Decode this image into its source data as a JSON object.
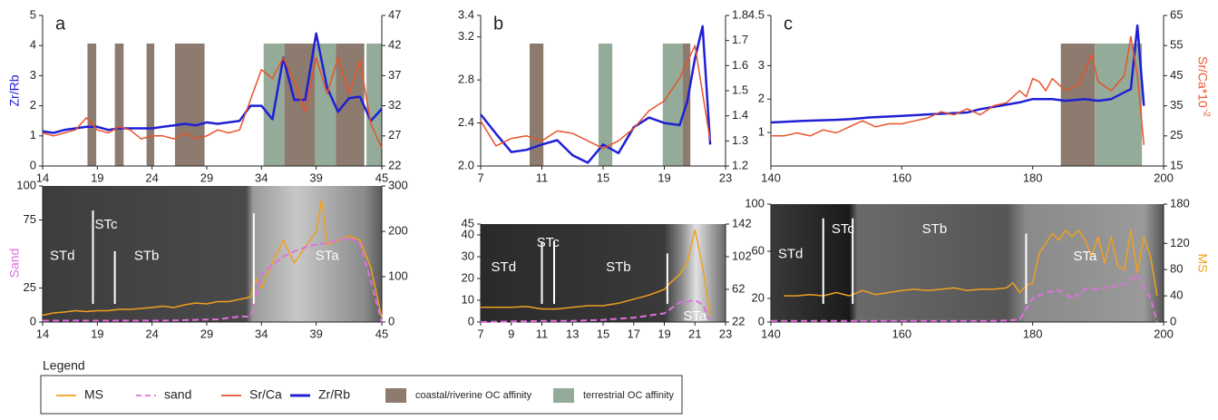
{
  "chart_data": [
    {
      "type": "line",
      "letter": "a",
      "ylabel": "Zr/Rb",
      "xlim": [
        14,
        45
      ],
      "xticks": [
        14,
        19,
        24,
        29,
        34,
        39,
        45
      ],
      "ylim": [
        0,
        5
      ],
      "yticks": [
        0,
        1,
        2,
        3,
        4,
        5
      ],
      "y2lim": [
        22,
        47
      ],
      "y2ticks": [
        22,
        27,
        32,
        37,
        42,
        47
      ],
      "spans": [
        {
          "x": [
            18.1,
            18.9
          ],
          "color": "#8c7b6e"
        },
        {
          "x": [
            20.6,
            21.4
          ],
          "color": "#8c7b6e"
        },
        {
          "x": [
            23.5,
            24.2
          ],
          "color": "#8c7b6e"
        },
        {
          "x": [
            26.1,
            28.8
          ],
          "color": "#8c7b6e"
        },
        {
          "x": [
            34.2,
            36.1
          ],
          "color": "#93ab98"
        },
        {
          "x": [
            36.1,
            38.9
          ],
          "color": "#8c7b6e"
        },
        {
          "x": [
            38.9,
            40.8
          ],
          "color": "#93ab98"
        },
        {
          "x": [
            40.8,
            43.4
          ],
          "color": "#8c7b6e"
        },
        {
          "x": [
            43.6,
            45
          ],
          "color": "#93ab98"
        }
      ],
      "series": [
        {
          "color": "#1f1fd6",
          "width": 2.5,
          "axis": "y",
          "x": [
            14,
            15,
            16,
            17,
            18,
            19,
            20,
            21,
            22,
            23,
            24,
            25,
            26,
            27,
            28,
            29,
            30,
            31,
            32,
            33,
            34,
            35,
            36,
            37,
            38,
            39,
            40,
            41,
            42,
            43,
            44,
            45
          ],
          "values": [
            1.15,
            1.1,
            1.2,
            1.25,
            1.3,
            1.3,
            1.2,
            1.25,
            1.25,
            1.25,
            1.25,
            1.3,
            1.35,
            1.4,
            1.35,
            1.45,
            1.4,
            1.45,
            1.5,
            2.0,
            2.0,
            1.55,
            3.6,
            2.2,
            2.2,
            4.4,
            2.6,
            1.8,
            2.25,
            2.3,
            1.5,
            1.9
          ]
        },
        {
          "color": "#e8532a",
          "width": 1.5,
          "axis": "y2",
          "x": [
            14,
            15,
            16,
            17,
            18,
            19,
            20,
            21,
            22,
            23,
            24,
            25,
            26,
            27,
            28,
            29,
            30,
            31,
            32,
            33,
            34,
            35,
            36,
            37,
            38,
            39,
            40,
            41,
            42,
            43,
            44,
            45
          ],
          "values": [
            27.5,
            27,
            27.5,
            28,
            30,
            28,
            27.5,
            28.5,
            28,
            26.5,
            27,
            27,
            26.5,
            27.5,
            26.5,
            27,
            28,
            27.5,
            28,
            33,
            38,
            36.5,
            40,
            36,
            31,
            40,
            34,
            40,
            34,
            39.5,
            29,
            25
          ]
        }
      ]
    },
    {
      "type": "line",
      "ylabel": "Sand",
      "xlim": [
        14,
        45
      ],
      "xticks": [
        14,
        19,
        24,
        29,
        34,
        39,
        45
      ],
      "ylim": [
        0,
        100
      ],
      "yticks": [
        0,
        25,
        75,
        100
      ],
      "y2lim": [
        0,
        300
      ],
      "y2ticks": [
        0,
        100,
        200,
        300
      ],
      "units": [
        "STd",
        "STc",
        "STb",
        "STa"
      ],
      "boundaries": [
        18.6,
        20.6,
        33.3
      ],
      "series": [
        {
          "color": "#f0a020",
          "width": 1.5,
          "axis": "y2",
          "x": [
            14,
            15,
            16,
            17,
            18,
            19,
            20,
            21,
            22,
            23,
            24,
            25,
            26,
            27,
            28,
            29,
            30,
            31,
            32,
            33,
            33.5,
            34,
            35,
            36,
            37,
            38,
            39,
            39.5,
            40,
            41,
            42,
            43,
            44,
            45
          ],
          "values": [
            15,
            20,
            22,
            25,
            23,
            25,
            25,
            28,
            28,
            30,
            32,
            35,
            32,
            38,
            42,
            40,
            45,
            45,
            50,
            55,
            95,
            75,
            130,
            180,
            130,
            165,
            200,
            270,
            170,
            180,
            190,
            180,
            120,
            10
          ]
        },
        {
          "color": "#e070e0",
          "width": 2,
          "axis": "y",
          "dash": true,
          "x": [
            14,
            20,
            25,
            30,
            32,
            33,
            34,
            35,
            36,
            37,
            38,
            39,
            40,
            41,
            42,
            43,
            44,
            45
          ],
          "values": [
            1,
            1,
            1,
            2,
            4,
            4,
            35,
            42,
            48,
            52,
            55,
            57,
            58,
            60,
            62,
            58,
            30,
            0
          ]
        }
      ]
    },
    {
      "type": "line",
      "letter": "b",
      "xlim": [
        7,
        23
      ],
      "xticks": [
        7,
        11,
        15,
        19,
        23
      ],
      "ylim": [
        2,
        3.4
      ],
      "yticks": [
        {
          "value": 2,
          "label": "2.0"
        },
        2.4,
        2.8,
        3.2,
        3.4
      ],
      "y2lim": [
        1.2,
        1.8
      ],
      "y2ticks": [
        1.2,
        1.3,
        1.4,
        1.5,
        1.6,
        1.7,
        1.8
      ],
      "spans": [
        {
          "x": [
            10.2,
            11.1
          ],
          "color": "#8c7b6e"
        },
        {
          "x": [
            14.7,
            15.6
          ],
          "color": "#93ab98"
        },
        {
          "x": [
            18.9,
            20.2
          ],
          "color": "#93ab98"
        },
        {
          "x": [
            20.2,
            20.7
          ],
          "color": "#8c7b6e"
        }
      ],
      "series": [
        {
          "color": "#1f1fd6",
          "width": 2.5,
          "axis": "y",
          "x": [
            7,
            8,
            9,
            10,
            11,
            12,
            13,
            14,
            15,
            16,
            17,
            18,
            19,
            20,
            20.5,
            21,
            21.5,
            22
          ],
          "values": [
            2.48,
            2.3,
            2.13,
            2.15,
            2.2,
            2.24,
            2.1,
            2.03,
            2.2,
            2.12,
            2.36,
            2.45,
            2.4,
            2.38,
            2.6,
            3.0,
            3.3,
            2.2
          ]
        },
        {
          "color": "#e8532a",
          "width": 1.5,
          "axis": "y2",
          "x": [
            7,
            8,
            9,
            10,
            11,
            12,
            13,
            14,
            15,
            16,
            17,
            18,
            19,
            20,
            21,
            22
          ],
          "values": [
            1.38,
            1.28,
            1.31,
            1.32,
            1.3,
            1.34,
            1.33,
            1.3,
            1.27,
            1.3,
            1.35,
            1.42,
            1.46,
            1.55,
            1.68,
            1.3
          ]
        }
      ]
    },
    {
      "type": "line",
      "xlim": [
        7,
        23
      ],
      "xticks": [
        7,
        9,
        11,
        13,
        15,
        17,
        19,
        21,
        23
      ],
      "ylim": [
        0,
        45
      ],
      "yticks": [
        0,
        10,
        20,
        30,
        40,
        45
      ],
      "y2lim": [
        22,
        142
      ],
      "y2ticks": [
        22,
        62,
        102,
        142
      ],
      "units": [
        "STd",
        "STc",
        "STb",
        "STa"
      ],
      "boundaries": [
        11,
        11.8,
        19.2
      ],
      "series": [
        {
          "color": "#f0a020",
          "width": 1.5,
          "axis": "y2",
          "x": [
            7,
            8,
            9,
            10,
            11,
            12,
            13,
            14,
            15,
            16,
            17,
            18,
            19,
            19.5,
            20,
            20.5,
            21,
            21.5,
            22
          ],
          "values": [
            40,
            40,
            40,
            41,
            38,
            38,
            40,
            42,
            42,
            45,
            50,
            55,
            62,
            72,
            80,
            95,
            135,
            90,
            30
          ]
        },
        {
          "color": "#e070e0",
          "width": 2,
          "axis": "y",
          "dash": true,
          "x": [
            7,
            11,
            13,
            15,
            17,
            18,
            19,
            20,
            21,
            21.5,
            22
          ],
          "values": [
            0,
            0.5,
            0.5,
            1,
            2,
            3,
            4,
            9,
            10,
            8,
            1
          ]
        }
      ]
    },
    {
      "type": "line",
      "letter": "c",
      "y2label": "Sr/Ca*10",
      "y2label_sup": "-2",
      "xlim": [
        140,
        200
      ],
      "xticks": [
        140,
        160,
        180,
        200
      ],
      "ylim": [
        0,
        4.5
      ],
      "yticks": [
        1,
        2,
        3,
        4.5
      ],
      "y2lim": [
        15,
        65
      ],
      "y2ticks": [
        15,
        25,
        35,
        45,
        55,
        65
      ],
      "spans": [
        {
          "x": [
            184.3,
            189.5
          ],
          "color": "#8c7b6e"
        },
        {
          "x": [
            189.5,
            196.7
          ],
          "color": "#93ab98"
        }
      ],
      "series": [
        {
          "color": "#1f1fd6",
          "width": 2.5,
          "axis": "y",
          "x": [
            140,
            145,
            150,
            152,
            155,
            160,
            165,
            170,
            172,
            175,
            178,
            180,
            183,
            185,
            188,
            190,
            192,
            194,
            195,
            196,
            197
          ],
          "values": [
            1.3,
            1.35,
            1.38,
            1.4,
            1.45,
            1.5,
            1.55,
            1.6,
            1.7,
            1.8,
            1.9,
            2.0,
            2.0,
            1.95,
            2.0,
            1.95,
            2.0,
            2.2,
            2.3,
            4.2,
            1.8
          ]
        },
        {
          "color": "#e8532a",
          "width": 1.5,
          "axis": "y2",
          "x": [
            140,
            142,
            144,
            146,
            148,
            150,
            152,
            154,
            156,
            158,
            160,
            162,
            164,
            166,
            168,
            170,
            172,
            174,
            176,
            178,
            179,
            180,
            181,
            182,
            183,
            185,
            187,
            189,
            190,
            192,
            194,
            195,
            196,
            197
          ],
          "values": [
            25,
            25,
            26,
            25,
            27,
            26,
            28,
            30,
            28,
            29,
            29,
            30,
            31,
            33,
            32,
            34,
            32,
            35,
            36,
            40,
            38,
            44,
            43,
            40,
            44,
            40,
            42,
            52,
            43,
            40,
            45,
            58,
            45,
            22
          ]
        }
      ]
    },
    {
      "type": "line",
      "y2label": "MS",
      "xlim": [
        140,
        200
      ],
      "xticks": [
        140,
        160,
        180,
        200
      ],
      "ylim": [
        0,
        100
      ],
      "yticks": [
        0,
        20,
        60,
        100
      ],
      "y2lim": [
        0,
        180
      ],
      "y2ticks": [
        0,
        40,
        80,
        120,
        180
      ],
      "units": [
        "STd",
        "STc",
        "STb",
        "STa"
      ],
      "boundaries": [
        148,
        152.5,
        179
      ],
      "series": [
        {
          "color": "#f0a020",
          "width": 1.5,
          "axis": "y2",
          "x": [
            142,
            144,
            146,
            148,
            150,
            152,
            154,
            156,
            158,
            160,
            162,
            164,
            166,
            168,
            170,
            172,
            174,
            176,
            177,
            178,
            179,
            180,
            181,
            182,
            183,
            184,
            185,
            186,
            187,
            188,
            189,
            190,
            191,
            192,
            193,
            194,
            195,
            196,
            197,
            198,
            199
          ],
          "values": [
            40,
            40,
            42,
            40,
            45,
            40,
            48,
            42,
            45,
            48,
            50,
            48,
            50,
            52,
            48,
            50,
            50,
            52,
            60,
            45,
            55,
            60,
            105,
            120,
            135,
            125,
            140,
            130,
            140,
            125,
            100,
            130,
            90,
            130,
            85,
            80,
            140,
            75,
            130,
            100,
            40
          ]
        },
        {
          "color": "#e070e0",
          "width": 2,
          "axis": "y",
          "dash": true,
          "x": [
            140,
            150,
            160,
            170,
            175,
            178,
            180,
            182,
            184,
            186,
            188,
            190,
            192,
            194,
            196,
            198,
            199
          ],
          "values": [
            1,
            1,
            1,
            1,
            1,
            2,
            20,
            25,
            27,
            20,
            28,
            28,
            30,
            32,
            40,
            20,
            0
          ]
        }
      ]
    }
  ],
  "legend": {
    "title": "Legend",
    "items": [
      {
        "name": "MS",
        "color": "#f0a020",
        "style": "line"
      },
      {
        "name": "sand",
        "color": "#e070e0",
        "style": "dashed"
      },
      {
        "name": "Sr/Ca",
        "color": "#e8532a",
        "style": "line"
      },
      {
        "name": "Zr/Rb",
        "color": "#1f1fd6",
        "style": "thick"
      },
      {
        "name": "coastal/riverine OC affinity",
        "color": "#8c7b6e",
        "style": "box"
      },
      {
        "name": "terrestrial OC affinity",
        "color": "#93ab98",
        "style": "box"
      }
    ]
  }
}
